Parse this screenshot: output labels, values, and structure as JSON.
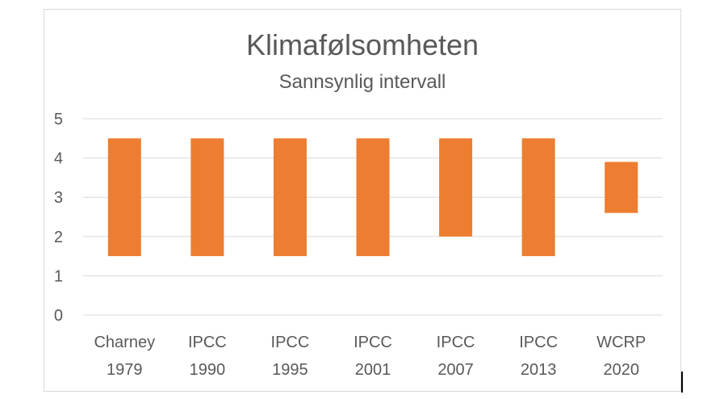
{
  "chart_data": {
    "type": "bar",
    "title": "Klimafølsomheten",
    "subtitle": "Sannsynlig intervall",
    "categories": [
      [
        "Charney",
        "1979"
      ],
      [
        "IPCC",
        "1990"
      ],
      [
        "IPCC",
        "1995"
      ],
      [
        "IPCC",
        "2001"
      ],
      [
        "IPCC",
        "2007"
      ],
      [
        "IPCC",
        "2013"
      ],
      [
        "WCRP",
        "2020"
      ]
    ],
    "series": [
      {
        "low": [
          1.5,
          1.5,
          1.5,
          1.5,
          2.0,
          1.5,
          2.6
        ],
        "high": [
          4.5,
          4.5,
          4.5,
          4.5,
          4.5,
          4.5,
          3.9
        ]
      }
    ],
    "ylim": [
      0,
      5
    ],
    "yticks": [
      0,
      1,
      2,
      3,
      4,
      5
    ],
    "grid": true,
    "bar_color": "#ed7d31",
    "grid_color": "#d9d9d9",
    "text_color": "#595959"
  }
}
